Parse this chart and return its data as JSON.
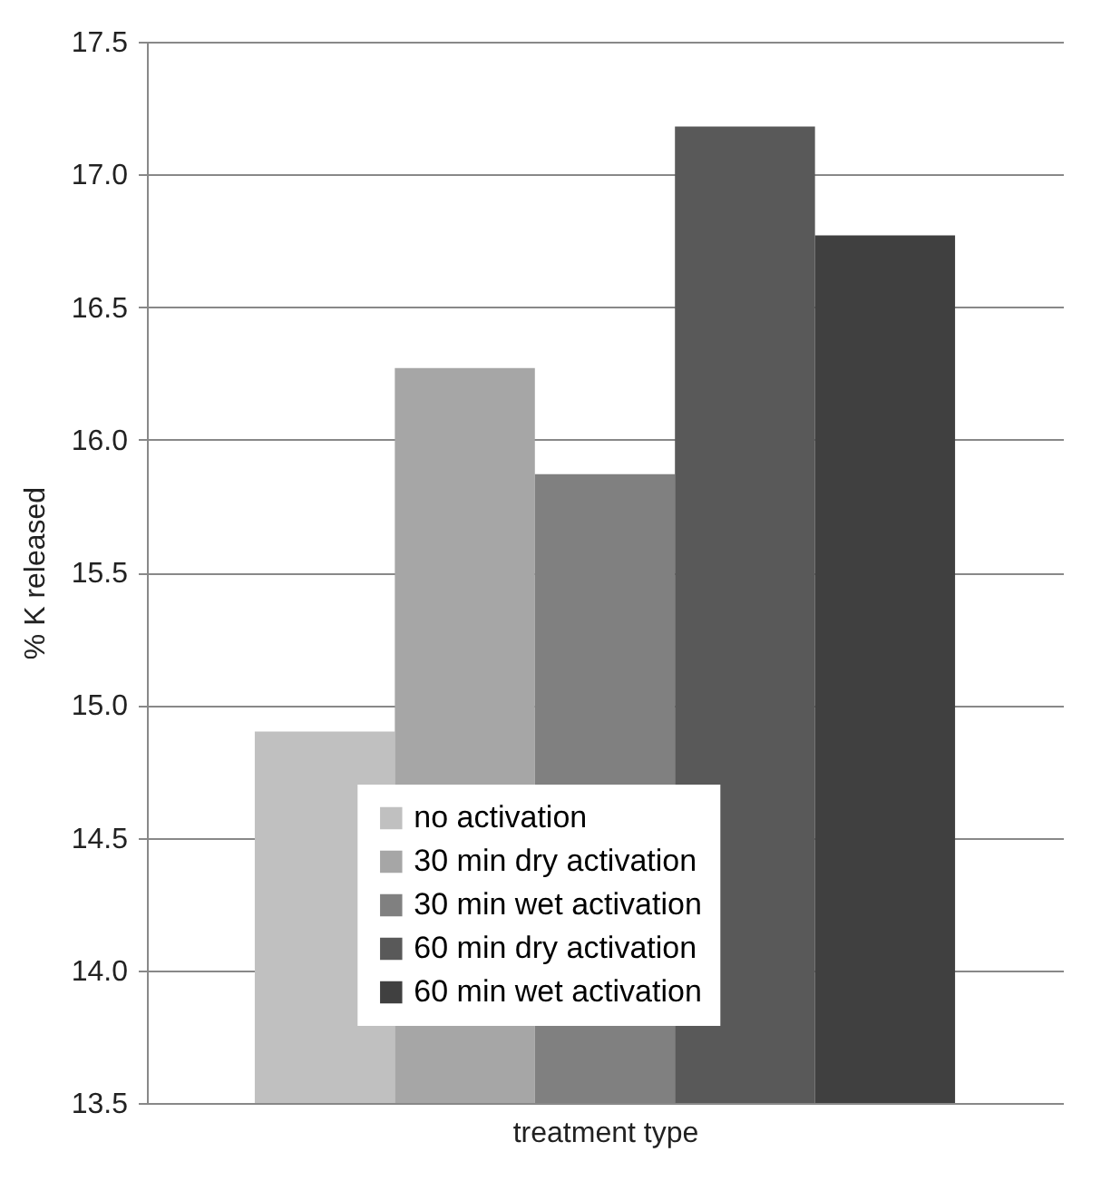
{
  "chart_data": {
    "type": "bar",
    "xlabel": "treatment type",
    "ylabel": "% K released",
    "categories": [
      null
    ],
    "series": [
      {
        "name": "no activation",
        "color": "#c0c0c0",
        "values": [
          14.9
        ]
      },
      {
        "name": "30 min dry activation",
        "color": "#a6a6a6",
        "values": [
          16.27
        ]
      },
      {
        "name": "30 min wet activation",
        "color": "#808080",
        "values": [
          15.87
        ]
      },
      {
        "name": "60 min dry activation",
        "color": "#595959",
        "values": [
          17.18
        ]
      },
      {
        "name": "60 min wet activation",
        "color": "#404040",
        "values": [
          16.77
        ]
      }
    ],
    "ylim": [
      13.5,
      17.5
    ],
    "yticks": [
      13.5,
      {
        "value": 14,
        "label": "14.0"
      },
      14.5,
      {
        "value": 15,
        "label": "15.0"
      },
      15.5,
      {
        "value": 16,
        "label": "16.0"
      },
      16.5,
      {
        "value": 17,
        "label": "17.0"
      },
      17.5
    ],
    "grid": "y",
    "legend": "bottom"
  }
}
